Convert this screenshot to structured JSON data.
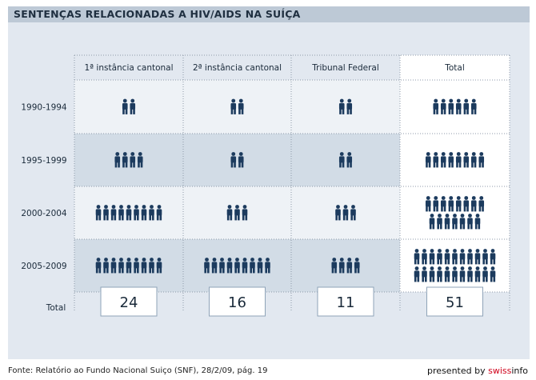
{
  "header": {
    "title": "SENTENÇAS RELACIONADAS A HIV/AIDS NA SUÍÇA"
  },
  "chart_data": {
    "type": "table",
    "title": "SENTENÇAS RELACIONADAS A HIV/AIDS NA SUÍÇA",
    "columns": [
      "1ª instância cantonal",
      "2ª instância cantonal",
      "Tribunal Federal",
      "Total"
    ],
    "rows": [
      "1990-1994",
      "1995-1999",
      "2000-2004",
      "2005-2009"
    ],
    "series": [
      {
        "name": "1ª instância cantonal",
        "values": [
          2,
          4,
          9,
          9
        ]
      },
      {
        "name": "2ª instância cantonal",
        "values": [
          2,
          2,
          3,
          9
        ]
      },
      {
        "name": "Tribunal Federal",
        "values": [
          2,
          2,
          3,
          4
        ]
      },
      {
        "name": "Total",
        "values": [
          6,
          8,
          15,
          22
        ]
      }
    ],
    "totals_label": "Total",
    "totals": [
      "24",
      "16",
      "11",
      "51"
    ]
  },
  "footer": {
    "source": "Fonte: Relatório ao Fundo Nacional Suiço (SNF), 28/2/09, pág. 19",
    "brand_prefix": "presented by ",
    "brand_red": "swiss",
    "brand_suffix": "info"
  },
  "colors": {
    "icon": "#1c3b5e",
    "band_light": "#eef2f6",
    "band_dark": "#d2dce6",
    "frame": "#e2e8f0"
  }
}
